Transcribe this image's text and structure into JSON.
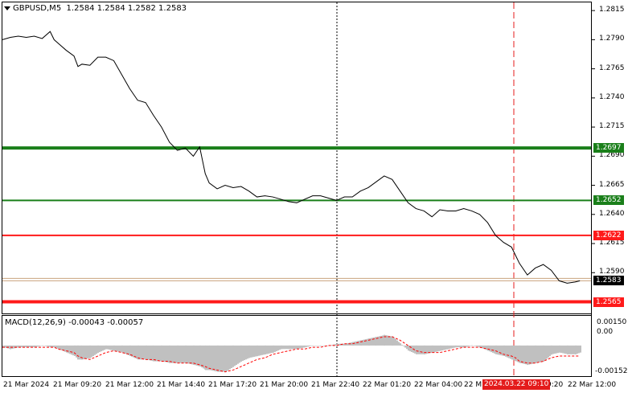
{
  "header": {
    "symbol": "GBPUSD,M5",
    "ohlc": "1.2584 1.2584 1.2582 1.2583"
  },
  "price_axis": {
    "labels": [
      "1.2815",
      "1.2790",
      "1.2765",
      "1.2740",
      "1.2715",
      "1.2690",
      "1.2665",
      "1.2640",
      "1.2615",
      "1.2590"
    ]
  },
  "levels": [
    {
      "label": "1.2697",
      "value": 1.2697,
      "color": "#1a7f1a"
    },
    {
      "label": "1.2652",
      "value": 1.2652,
      "color": "#1a7f1a"
    },
    {
      "label": "1.2622",
      "value": 1.2622,
      "color": "#ff1a1a"
    },
    {
      "label": "1.2565",
      "value": 1.2565,
      "color": "#ff1a1a"
    }
  ],
  "current_price": {
    "label": "1.2583",
    "value": 1.2583
  },
  "macd": {
    "title": "MACD(12,26,9) -0.00043 -0.00057",
    "axis_labels": [
      "0.00150",
      "0.00",
      "-0.00152"
    ]
  },
  "time_axis": {
    "labels": [
      "21 Mar 2024",
      "21 Mar 09:20",
      "21 Mar 12:00",
      "21 Mar 14:40",
      "21 Mar 17:20",
      "21 Mar 20:00",
      "21 Mar 22:40",
      "22 Mar 01:20",
      "22 Mar 04:00",
      "22 M",
      "9:20",
      "22 Mar 12:00"
    ],
    "cursor_label": "2024.03.22 09:10"
  },
  "chart_data": {
    "type": "line",
    "ylim": [
      1.2555,
      1.2822
    ],
    "x": [
      0,
      10,
      20,
      30,
      40,
      50,
      60,
      65,
      70,
      80,
      90,
      95,
      100,
      110,
      120,
      130,
      140,
      150,
      160,
      170,
      180,
      190,
      200,
      210,
      220,
      230,
      240,
      248,
      255,
      260,
      270,
      280,
      290,
      300,
      310,
      320,
      330,
      340,
      350,
      360,
      370,
      380,
      390,
      400,
      410,
      420,
      430,
      440,
      450,
      460,
      470,
      480,
      490,
      500,
      510,
      520,
      530,
      540,
      550,
      560,
      570,
      580,
      590,
      600,
      610,
      620,
      630,
      640,
      645,
      650,
      660,
      670,
      680,
      690,
      700,
      710,
      720,
      726
    ],
    "series": [
      {
        "values": [
          1.279,
          1.2792,
          1.2793,
          1.2792,
          1.2793,
          1.2791,
          1.2797,
          1.279,
          1.2787,
          1.2781,
          1.2776,
          1.2767,
          1.2769,
          1.2768,
          1.2775,
          1.2775,
          1.2772,
          1.276,
          1.2748,
          1.2738,
          1.2736,
          1.2725,
          1.2715,
          1.2702,
          1.2695,
          1.2697,
          1.269,
          1.2698,
          1.2675,
          1.2667,
          1.2662,
          1.2665,
          1.2663,
          1.2664,
          1.266,
          1.2655,
          1.2656,
          1.2655,
          1.2653,
          1.2651,
          1.265,
          1.2653,
          1.2656,
          1.2656,
          1.2654,
          1.2652,
          1.2655,
          1.2655,
          1.266,
          1.2663,
          1.2668,
          1.2673,
          1.267,
          1.266,
          1.265,
          1.2645,
          1.2643,
          1.2638,
          1.2644,
          1.2643,
          1.2643,
          1.2645,
          1.2643,
          1.264,
          1.2633,
          1.2622,
          1.2616,
          1.2612,
          1.2605,
          1.2598,
          1.2588,
          1.2594,
          1.2597,
          1.2592,
          1.2583,
          1.2581,
          1.2582,
          1.2583
        ]
      },
      {
        "name": "MACD main",
        "values": [
          -0.0001,
          -0.0002,
          -0.0001,
          -0.0001,
          -0.0001,
          0.0,
          -0.0001,
          -0.0001,
          -0.0002,
          -0.0004,
          -0.0006,
          -0.0008,
          -0.0008,
          -0.0007,
          -0.0004,
          -0.0002,
          -0.0003,
          -0.0004,
          -0.0006,
          -0.0008,
          -0.0008,
          -0.0009,
          -0.0009,
          -0.001,
          -0.001,
          -0.001,
          -0.0011,
          -0.0012,
          -0.0014,
          -0.0014,
          -0.0015,
          -0.0015,
          -0.0012,
          -0.0009,
          -0.0007,
          -0.0006,
          -0.0005,
          -0.0004,
          -0.0002,
          -0.0002,
          -0.0002,
          -0.0001,
          0.0,
          0.0,
          0.0,
          0.0001,
          0.0001,
          0.0002,
          0.0003,
          0.0004,
          0.0005,
          0.0006,
          0.0005,
          0.0001,
          -0.0003,
          -0.0005,
          -0.0005,
          -0.0004,
          -0.0003,
          -0.0002,
          -0.0001,
          -0.0001,
          0.0,
          -0.0001,
          -0.0003,
          -0.0005,
          -0.0006,
          -0.0008,
          -0.0009,
          -0.001,
          -0.0011,
          -0.001,
          -0.0009,
          -0.0005,
          -0.0004,
          -0.0005,
          -0.0005,
          -0.0004
        ]
      },
      {
        "name": "MACD signal",
        "values": [
          -0.0001,
          -0.0001,
          -0.0001,
          -0.0001,
          -0.0001,
          -0.0001,
          -0.0001,
          -0.0001,
          -0.0002,
          -0.0003,
          -0.0004,
          -0.0006,
          -0.0007,
          -0.0008,
          -0.0006,
          -0.0004,
          -0.0003,
          -0.0004,
          -0.0005,
          -0.0007,
          -0.0008,
          -0.0008,
          -0.0009,
          -0.0009,
          -0.001,
          -0.001,
          -0.001,
          -0.0011,
          -0.0012,
          -0.0013,
          -0.0014,
          -0.0015,
          -0.0014,
          -0.0012,
          -0.001,
          -0.0008,
          -0.0007,
          -0.0005,
          -0.0004,
          -0.0003,
          -0.0002,
          -0.0002,
          -0.0001,
          -0.0001,
          0.0,
          0.0,
          0.0001,
          0.0001,
          0.0002,
          0.0003,
          0.0004,
          0.0005,
          0.0005,
          0.0003,
          0.0,
          -0.0003,
          -0.0004,
          -0.0004,
          -0.0004,
          -0.0003,
          -0.0002,
          -0.0001,
          -0.0001,
          -0.0001,
          -0.0002,
          -0.0003,
          -0.0005,
          -0.0006,
          -0.0007,
          -0.0009,
          -0.001,
          -0.001,
          -0.0009,
          -0.0007,
          -0.0006,
          -0.0006,
          -0.0006,
          -0.0006
        ]
      }
    ],
    "macd_ylim": [
      -0.0017,
      0.0016
    ],
    "grid": false
  },
  "colors": {
    "price_line": "#000000",
    "macd_hist": "#c0c0c0",
    "macd_signal": "#ff0000",
    "current_price": "#000000",
    "cursor": "#e41b1b"
  }
}
